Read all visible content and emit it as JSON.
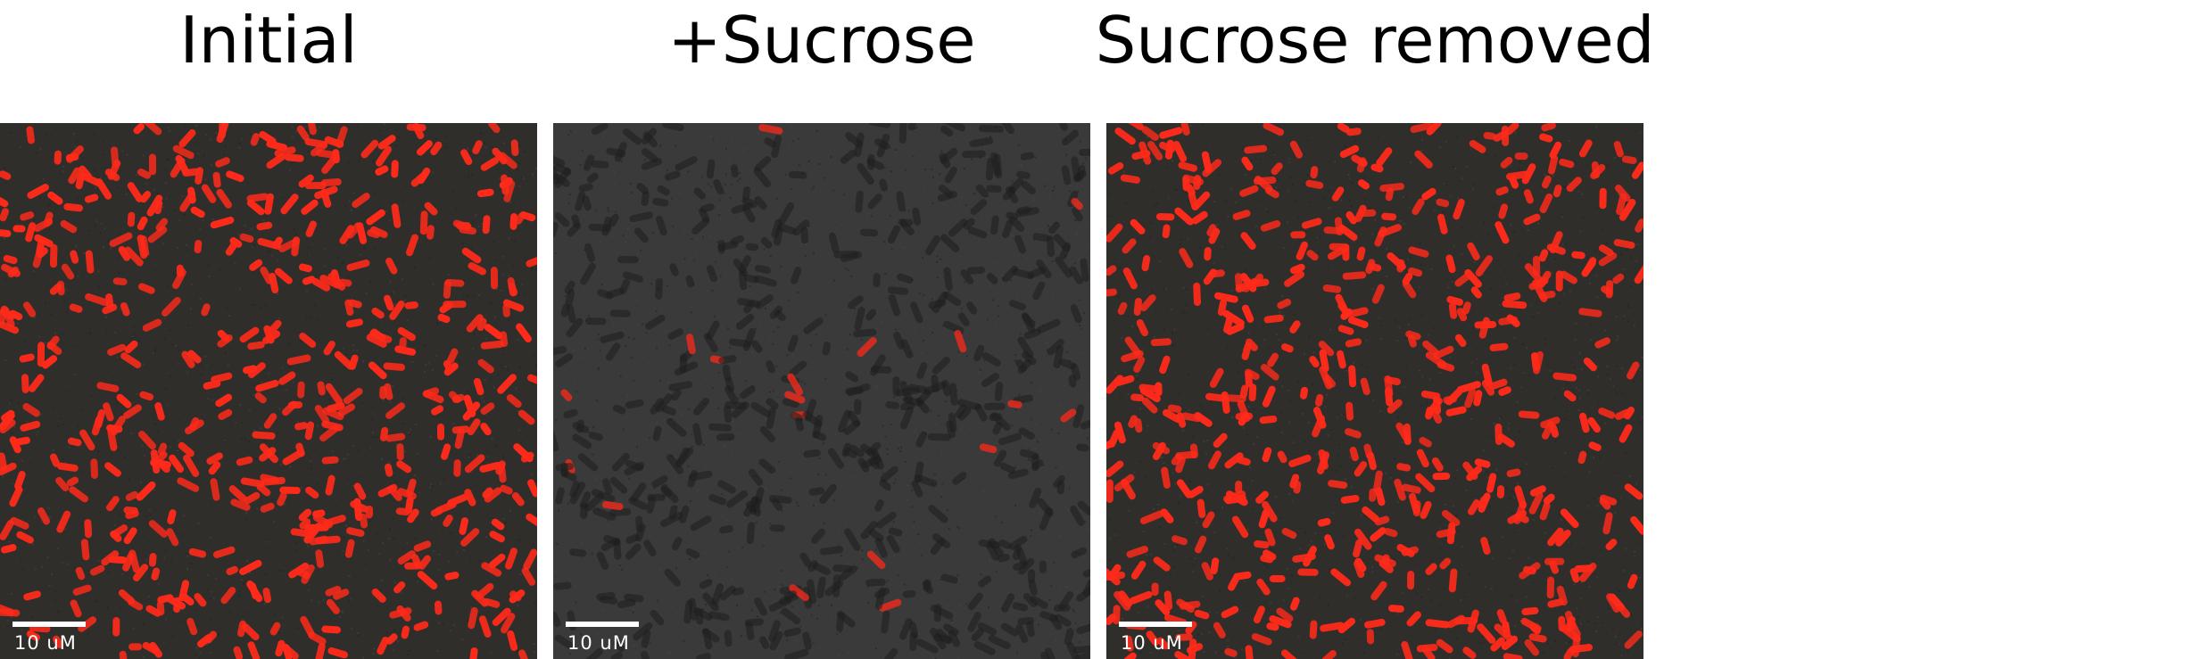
{
  "panels": [
    {
      "title": "Initial",
      "scale_label": "10 uM",
      "cells": "many-red",
      "background": "#2f2e2b"
    },
    {
      "title": "+Sucrose",
      "scale_label": "10 uM",
      "cells": "dark-few-red",
      "background": "#3a3a3a"
    },
    {
      "title": "Sucrose removed",
      "scale_label": "10 uM",
      "cells": "many-red",
      "background": "#2f2e2b"
    }
  ],
  "colors": {
    "cell_red": "#ff2a1a",
    "cell_dark": "#1e1e1e",
    "scalebar": "#ffffff"
  }
}
